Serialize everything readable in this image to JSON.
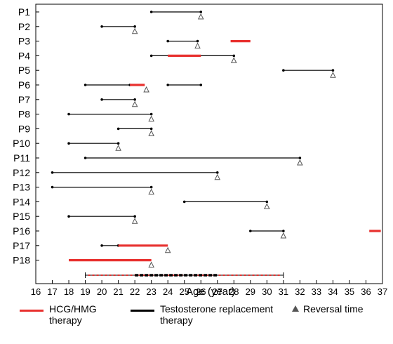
{
  "chart_data": {
    "type": "timeline",
    "xlabel": "Age (year)",
    "xlim": [
      16,
      37
    ],
    "xticks": [
      16,
      17,
      18,
      19,
      20,
      21,
      22,
      23,
      24,
      25,
      26,
      27,
      28,
      29,
      30,
      31,
      32,
      33,
      34,
      35,
      36,
      37
    ],
    "grid": false,
    "colors": {
      "hcg": "#e8312f",
      "testosterone": "#000000",
      "reversal": "#555555"
    },
    "patients": [
      {
        "label": "P1",
        "testosterone": [
          [
            23,
            26
          ]
        ],
        "hcg": [],
        "reversal": 26
      },
      {
        "label": "P2",
        "testosterone": [
          [
            20,
            22
          ]
        ],
        "hcg": [],
        "reversal": 22
      },
      {
        "label": "P3",
        "testosterone": [
          [
            24,
            25.8
          ]
        ],
        "hcg": [
          [
            27.8,
            29
          ]
        ],
        "reversal": 25.8
      },
      {
        "label": "P4",
        "testosterone": [
          [
            23,
            28
          ]
        ],
        "hcg": [
          [
            24,
            26
          ]
        ],
        "reversal": 28
      },
      {
        "label": "P5",
        "testosterone": [
          [
            31,
            34
          ]
        ],
        "hcg": [],
        "reversal": 34
      },
      {
        "label": "P6",
        "testosterone": [
          [
            19,
            21.7
          ],
          [
            24,
            26
          ]
        ],
        "hcg": [
          [
            21.7,
            22.6
          ]
        ],
        "reversal": 22.7
      },
      {
        "label": "P7",
        "testosterone": [
          [
            20,
            22
          ]
        ],
        "hcg": [],
        "reversal": 22
      },
      {
        "label": "P8",
        "testosterone": [
          [
            18,
            23
          ]
        ],
        "hcg": [],
        "reversal": 23
      },
      {
        "label": "P9",
        "testosterone": [
          [
            21,
            23
          ]
        ],
        "hcg": [],
        "reversal": 23
      },
      {
        "label": "P10",
        "testosterone": [
          [
            18,
            21
          ]
        ],
        "hcg": [],
        "reversal": 21
      },
      {
        "label": "P11",
        "testosterone": [
          [
            19,
            32
          ]
        ],
        "hcg": [],
        "reversal": 32
      },
      {
        "label": "P12",
        "testosterone": [
          [
            17,
            27
          ]
        ],
        "hcg": [],
        "reversal": 27
      },
      {
        "label": "P13",
        "testosterone": [
          [
            17,
            23
          ]
        ],
        "hcg": [],
        "reversal": 23
      },
      {
        "label": "P14",
        "testosterone": [
          [
            25,
            30
          ]
        ],
        "hcg": [],
        "reversal": 30
      },
      {
        "label": "P15",
        "testosterone": [
          [
            18,
            22
          ]
        ],
        "hcg": [],
        "reversal": 22
      },
      {
        "label": "P16",
        "testosterone": [
          [
            29,
            31
          ]
        ],
        "hcg": [
          [
            36.2,
            36.9
          ]
        ],
        "reversal": 31
      },
      {
        "label": "P17",
        "testosterone": [
          [
            20,
            21
          ]
        ],
        "hcg": [
          [
            21,
            24
          ]
        ],
        "reversal": 24
      },
      {
        "label": "P18",
        "testosterone": [],
        "hcg": [
          [
            18,
            23
          ]
        ],
        "reversal": 23
      }
    ],
    "summary_bar": {
      "range": [
        19,
        31
      ],
      "thick_range": [
        22,
        27
      ]
    },
    "legend": [
      {
        "key": "hcg",
        "label": "HCG/HMG therapy"
      },
      {
        "key": "testosterone",
        "label": "Testosterone replacement therapy"
      },
      {
        "key": "reversal",
        "label": "Reversal time"
      }
    ]
  }
}
